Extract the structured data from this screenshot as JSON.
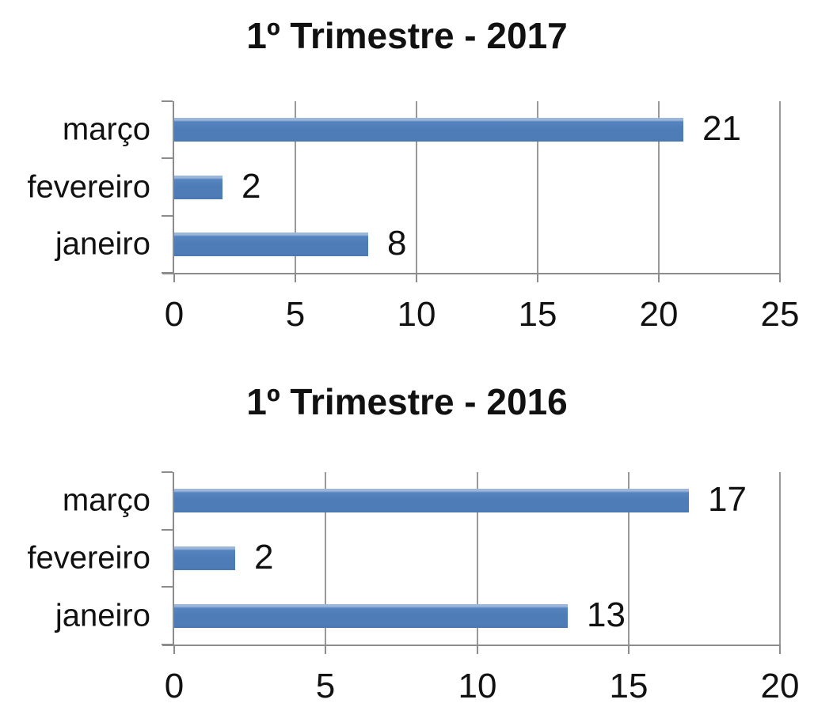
{
  "page": {
    "background": "#ffffff",
    "text_color": "#111111"
  },
  "chart_data": [
    {
      "type": "bar",
      "orientation": "horizontal",
      "title": "1º Trimestre - 2017",
      "categories": [
        "março",
        "fevereiro",
        "janeiro"
      ],
      "values": [
        21,
        2,
        8
      ],
      "value_labels": [
        "21",
        "2",
        "8"
      ],
      "xlabel": "",
      "ylabel": "",
      "xlim": [
        0,
        25
      ],
      "xticks": [
        0,
        5,
        10,
        15,
        20,
        25
      ],
      "xtick_labels": [
        "0",
        "5",
        "10",
        "15",
        "20",
        "25"
      ],
      "grid": true,
      "legend": false,
      "bar_color": "#4F81BD",
      "axis_color": "#8c8c8c",
      "gridline_color": "#999999"
    },
    {
      "type": "bar",
      "orientation": "horizontal",
      "title": "1º Trimestre - 2016",
      "categories": [
        "março",
        "fevereiro",
        "janeiro"
      ],
      "values": [
        17,
        2,
        13
      ],
      "value_labels": [
        "17",
        "2",
        "13"
      ],
      "xlabel": "",
      "ylabel": "",
      "xlim": [
        0,
        20
      ],
      "xticks": [
        0,
        5,
        10,
        15,
        20
      ],
      "xtick_labels": [
        "0",
        "5",
        "10",
        "15",
        "20"
      ],
      "grid": true,
      "legend": false,
      "bar_color": "#4F81BD",
      "axis_color": "#8c8c8c",
      "gridline_color": "#999999"
    }
  ]
}
